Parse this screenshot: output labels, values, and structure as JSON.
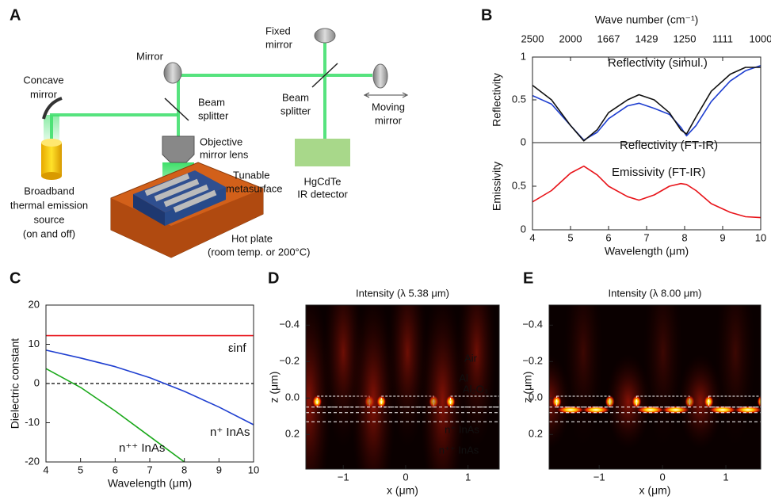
{
  "panel_labels": [
    "A",
    "B",
    "C",
    "D",
    "E"
  ],
  "diagram": {
    "fixed_mirror": [
      "Fixed",
      "mirror"
    ],
    "mirror": [
      "Mirror"
    ],
    "concave_mirror": [
      "Concave",
      "mirror"
    ],
    "beam_splitter_left": [
      "Beam",
      "splitter"
    ],
    "beam_splitter_right": [
      "Beam",
      "splitter"
    ],
    "moving_mirror": [
      "Moving",
      "mirror"
    ],
    "objective": [
      "Objective",
      "mirror lens"
    ],
    "metasurface": [
      "Tunable",
      "metasurface"
    ],
    "detector": [
      "HgCdTe",
      "IR detector"
    ],
    "source": [
      "Broadband",
      "thermal emission",
      "source",
      "(on and off)"
    ],
    "hot_plate": [
      "Hot plate",
      "(room temp. or 200°C)"
    ]
  },
  "chart_data": [
    {
      "type": "line",
      "ylabel": "Reflectivity",
      "x2label": "Wave number (cm⁻¹)",
      "x": [
        4,
        4.5,
        5,
        5.35,
        5.7,
        6,
        6.5,
        6.8,
        7.2,
        7.6,
        7.9,
        8.05,
        8.3,
        8.7,
        9.2,
        9.6,
        10
      ],
      "xlim": [
        4,
        10
      ],
      "x2ticks": [
        {
          "value": 4,
          "label": "2500"
        },
        {
          "value": 5,
          "label": "2000"
        },
        {
          "value": 6,
          "label": "1667"
        },
        {
          "value": 7,
          "label": "1429"
        },
        {
          "value": 8,
          "label": "1250"
        },
        {
          "value": 9,
          "label": "1111"
        },
        {
          "value": 10,
          "label": "1000"
        }
      ],
      "ylim": [
        0,
        1
      ],
      "yticks": [
        0,
        0.5,
        1
      ],
      "series": [
        {
          "name": "Reflectivity (simul.)",
          "color": "#1f3fd0",
          "values": [
            0.55,
            0.45,
            0.2,
            0.03,
            0.12,
            0.28,
            0.43,
            0.46,
            0.4,
            0.33,
            0.18,
            0.08,
            0.2,
            0.48,
            0.72,
            0.84,
            0.9
          ]
        },
        {
          "name": "Reflectivity (FT-IR)",
          "color": "#111111",
          "values": [
            0.67,
            0.5,
            0.2,
            0.02,
            0.15,
            0.35,
            0.5,
            0.56,
            0.5,
            0.35,
            0.15,
            0.1,
            0.3,
            0.6,
            0.8,
            0.88,
            0.88
          ]
        }
      ]
    },
    {
      "type": "line",
      "ylabel": "Emissivity",
      "xlabel": "Wavelength (μm)",
      "x": [
        4,
        4.5,
        5,
        5.35,
        5.7,
        6,
        6.5,
        6.8,
        7.2,
        7.6,
        7.9,
        8.05,
        8.3,
        8.7,
        9.2,
        9.6,
        10
      ],
      "xlim": [
        4,
        10
      ],
      "xticks": [
        4,
        5,
        6,
        7,
        8,
        9,
        10
      ],
      "ylim": [
        0,
        1
      ],
      "yticks": [
        0,
        0.5
      ],
      "series": [
        {
          "name": "Emissivity (FT-IR)",
          "color": "#e8141a",
          "values": [
            0.32,
            0.45,
            0.65,
            0.73,
            0.63,
            0.5,
            0.38,
            0.34,
            0.4,
            0.5,
            0.53,
            0.52,
            0.45,
            0.3,
            0.2,
            0.15,
            0.14
          ]
        }
      ]
    },
    {
      "type": "line",
      "ylabel": "Dielectric constant",
      "xlabel": "Wavelength (μm)",
      "x": [
        4,
        5,
        6,
        7,
        8,
        9,
        10
      ],
      "xlim": [
        4,
        10
      ],
      "xticks": [
        4,
        5,
        6,
        7,
        8,
        9,
        10
      ],
      "ylim": [
        -20,
        20
      ],
      "yticks": [
        -20,
        -10,
        0,
        10,
        20
      ],
      "hline": 0,
      "series": [
        {
          "name": "εinf",
          "color": "#e8141a",
          "values": [
            12.2,
            12.2,
            12.2,
            12.2,
            12.2,
            12.2,
            12.2
          ]
        },
        {
          "name": "n⁺ InAs",
          "color": "#1f3fd0",
          "values": [
            8.5,
            6.5,
            4.3,
            1.5,
            -2,
            -6,
            -10.5
          ]
        },
        {
          "name": "n⁺⁺ InAs",
          "color": "#1aa81a",
          "values": [
            3.8,
            -1,
            -7,
            -13.5,
            -20,
            null,
            null
          ]
        }
      ]
    },
    {
      "type": "heatmap",
      "title": "Intensity (λ 5.38 μm)",
      "xlabel": "x (μm)",
      "ylabel": "z (μm)",
      "xlim": [
        -1.6,
        1.5
      ],
      "xticks": [
        {
          "value": -1,
          "label": "−1"
        },
        0,
        1
      ],
      "ylim": [
        0.39,
        -0.51
      ],
      "yticks": [
        {
          "value": -0.4,
          "label": "−0.4"
        },
        {
          "value": -0.2,
          "label": "−0.2"
        },
        {
          "value": 0,
          "label": "0.0"
        },
        0.2
      ],
      "annotations": [
        "Air",
        "Al",
        "Al₂O₃",
        "n⁺ InAs",
        "n⁺⁺ InAs"
      ]
    },
    {
      "type": "heatmap",
      "title": "Intensity (λ 8.00 μm)",
      "xlabel": "x (μm)",
      "ylabel": "z (μm)",
      "xlim": [
        -1.79,
        1.55
      ],
      "xticks": [
        {
          "value": -1,
          "label": "−1"
        },
        0,
        1
      ],
      "ylim": [
        0.39,
        -0.51
      ],
      "yticks": [
        {
          "value": -0.4,
          "label": "−0.4"
        },
        {
          "value": -0.2,
          "label": "−0.2"
        },
        {
          "value": 0,
          "label": "0.0"
        },
        0.2
      ]
    }
  ]
}
